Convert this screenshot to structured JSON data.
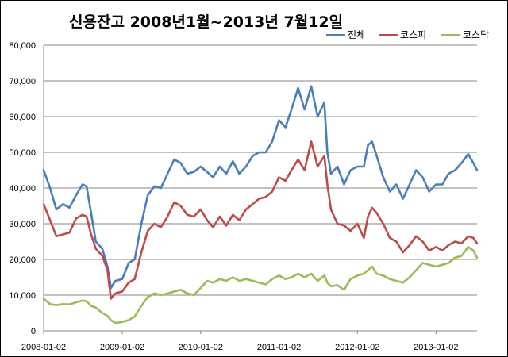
{
  "chart_data": {
    "type": "line",
    "title": "신용잔고  2008년1월~2013년 7월12일",
    "xlabel": "",
    "ylabel": "",
    "ylim": [
      0,
      80000
    ],
    "y_ticks": [
      "0",
      "10,000",
      "20,000",
      "30,000",
      "40,000",
      "50,000",
      "60,000",
      "70,000",
      "80,000"
    ],
    "x_ticks": [
      "2008-01-02",
      "2009-01-02",
      "2010-01-02",
      "2011-01-02",
      "2012-01-02",
      "2013-01-02"
    ],
    "xlim": [
      "2008-01-02",
      "2013-07-12"
    ],
    "grid": "horizontal",
    "legend_position": "top-right",
    "series": [
      {
        "name": "전체",
        "color": "#4A7EBB",
        "points": [
          [
            "2008-01-02",
            45000
          ],
          [
            "2008-02-01",
            40000
          ],
          [
            "2008-03-01",
            34000
          ],
          [
            "2008-04-01",
            35500
          ],
          [
            "2008-05-01",
            34500
          ],
          [
            "2008-06-01",
            38000
          ],
          [
            "2008-07-01",
            41000
          ],
          [
            "2008-07-20",
            40500
          ],
          [
            "2008-08-10",
            33000
          ],
          [
            "2008-09-01",
            25000
          ],
          [
            "2008-10-01",
            23000
          ],
          [
            "2008-10-25",
            18000
          ],
          [
            "2008-11-10",
            12000
          ],
          [
            "2008-12-01",
            14000
          ],
          [
            "2009-01-02",
            14500
          ],
          [
            "2009-02-01",
            19000
          ],
          [
            "2009-03-01",
            20000
          ],
          [
            "2009-04-01",
            30000
          ],
          [
            "2009-05-01",
            38000
          ],
          [
            "2009-06-01",
            40500
          ],
          [
            "2009-07-01",
            40000
          ],
          [
            "2009-08-01",
            44000
          ],
          [
            "2009-09-01",
            48000
          ],
          [
            "2009-10-01",
            47000
          ],
          [
            "2009-11-01",
            44000
          ],
          [
            "2009-12-01",
            44500
          ],
          [
            "2010-01-02",
            46000
          ],
          [
            "2010-02-01",
            44500
          ],
          [
            "2010-03-01",
            43000
          ],
          [
            "2010-04-01",
            46000
          ],
          [
            "2010-05-01",
            44000
          ],
          [
            "2010-06-01",
            47500
          ],
          [
            "2010-07-01",
            44000
          ],
          [
            "2010-08-01",
            46000
          ],
          [
            "2010-09-01",
            49000
          ],
          [
            "2010-10-01",
            50000
          ],
          [
            "2010-11-01",
            50000
          ],
          [
            "2010-12-01",
            53000
          ],
          [
            "2011-01-02",
            59000
          ],
          [
            "2011-02-01",
            57000
          ],
          [
            "2011-03-01",
            62000
          ],
          [
            "2011-04-01",
            68000
          ],
          [
            "2011-05-01",
            62000
          ],
          [
            "2011-06-01",
            68500
          ],
          [
            "2011-07-01",
            60000
          ],
          [
            "2011-08-01",
            64000
          ],
          [
            "2011-08-15",
            50000
          ],
          [
            "2011-09-01",
            44000
          ],
          [
            "2011-10-01",
            46000
          ],
          [
            "2011-11-01",
            41000
          ],
          [
            "2011-12-01",
            45000
          ],
          [
            "2012-01-02",
            46000
          ],
          [
            "2012-02-01",
            46000
          ],
          [
            "2012-02-20",
            52000
          ],
          [
            "2012-03-10",
            53000
          ],
          [
            "2012-04-01",
            49000
          ],
          [
            "2012-05-01",
            43000
          ],
          [
            "2012-06-01",
            39000
          ],
          [
            "2012-07-01",
            41000
          ],
          [
            "2012-08-01",
            37000
          ],
          [
            "2012-09-01",
            41000
          ],
          [
            "2012-10-01",
            45000
          ],
          [
            "2012-11-01",
            43000
          ],
          [
            "2012-12-01",
            39000
          ],
          [
            "2013-01-02",
            41000
          ],
          [
            "2013-02-01",
            41000
          ],
          [
            "2013-03-01",
            44000
          ],
          [
            "2013-04-01",
            45000
          ],
          [
            "2013-05-01",
            47000
          ],
          [
            "2013-06-01",
            49500
          ],
          [
            "2013-06-25",
            47000
          ],
          [
            "2013-07-12",
            45000
          ]
        ]
      },
      {
        "name": "코스피",
        "color": "#BE4B48",
        "points": [
          [
            "2008-01-02",
            35500
          ],
          [
            "2008-02-01",
            31000
          ],
          [
            "2008-03-01",
            26500
          ],
          [
            "2008-04-01",
            27000
          ],
          [
            "2008-05-01",
            27500
          ],
          [
            "2008-06-01",
            31500
          ],
          [
            "2008-07-01",
            32500
          ],
          [
            "2008-07-20",
            32000
          ],
          [
            "2008-08-10",
            27000
          ],
          [
            "2008-09-01",
            23000
          ],
          [
            "2008-10-01",
            21000
          ],
          [
            "2008-10-25",
            17000
          ],
          [
            "2008-11-10",
            9000
          ],
          [
            "2008-12-01",
            10500
          ],
          [
            "2009-01-02",
            11000
          ],
          [
            "2009-02-01",
            13500
          ],
          [
            "2009-03-01",
            14500
          ],
          [
            "2009-04-01",
            22000
          ],
          [
            "2009-05-01",
            28000
          ],
          [
            "2009-06-01",
            30000
          ],
          [
            "2009-07-01",
            29000
          ],
          [
            "2009-08-01",
            32000
          ],
          [
            "2009-09-01",
            36000
          ],
          [
            "2009-10-01",
            35000
          ],
          [
            "2009-11-01",
            32500
          ],
          [
            "2009-12-01",
            32000
          ],
          [
            "2010-01-02",
            34000
          ],
          [
            "2010-02-01",
            31000
          ],
          [
            "2010-03-01",
            29000
          ],
          [
            "2010-04-01",
            32000
          ],
          [
            "2010-05-01",
            29500
          ],
          [
            "2010-06-01",
            32500
          ],
          [
            "2010-07-01",
            31000
          ],
          [
            "2010-08-01",
            34000
          ],
          [
            "2010-09-01",
            35500
          ],
          [
            "2010-10-01",
            37000
          ],
          [
            "2010-11-01",
            37500
          ],
          [
            "2010-12-01",
            39000
          ],
          [
            "2011-01-02",
            43000
          ],
          [
            "2011-02-01",
            42000
          ],
          [
            "2011-03-01",
            45000
          ],
          [
            "2011-04-01",
            48000
          ],
          [
            "2011-05-01",
            45000
          ],
          [
            "2011-06-01",
            53000
          ],
          [
            "2011-07-01",
            46000
          ],
          [
            "2011-08-01",
            49000
          ],
          [
            "2011-08-15",
            41000
          ],
          [
            "2011-09-01",
            34000
          ],
          [
            "2011-10-01",
            30000
          ],
          [
            "2011-11-01",
            29500
          ],
          [
            "2011-12-01",
            28000
          ],
          [
            "2012-01-02",
            30000
          ],
          [
            "2012-02-01",
            26000
          ],
          [
            "2012-02-20",
            32000
          ],
          [
            "2012-03-10",
            34500
          ],
          [
            "2012-04-01",
            33000
          ],
          [
            "2012-05-01",
            30000
          ],
          [
            "2012-06-01",
            26000
          ],
          [
            "2012-07-01",
            25000
          ],
          [
            "2012-08-01",
            22000
          ],
          [
            "2012-09-01",
            24000
          ],
          [
            "2012-10-01",
            26500
          ],
          [
            "2012-11-01",
            25000
          ],
          [
            "2012-12-01",
            22500
          ],
          [
            "2013-01-02",
            23500
          ],
          [
            "2013-02-01",
            22500
          ],
          [
            "2013-03-01",
            24000
          ],
          [
            "2013-04-01",
            25000
          ],
          [
            "2013-05-01",
            24500
          ],
          [
            "2013-06-01",
            26500
          ],
          [
            "2013-06-25",
            26000
          ],
          [
            "2013-07-12",
            24500
          ]
        ]
      },
      {
        "name": "코스닥",
        "color": "#9BBB59",
        "points": [
          [
            "2008-01-02",
            9000
          ],
          [
            "2008-02-01",
            7500
          ],
          [
            "2008-03-01",
            7200
          ],
          [
            "2008-04-01",
            7500
          ],
          [
            "2008-05-01",
            7400
          ],
          [
            "2008-06-01",
            8000
          ],
          [
            "2008-07-01",
            8500
          ],
          [
            "2008-07-20",
            8300
          ],
          [
            "2008-08-10",
            7000
          ],
          [
            "2008-09-01",
            6500
          ],
          [
            "2008-10-01",
            5000
          ],
          [
            "2008-10-25",
            4200
          ],
          [
            "2008-11-10",
            3000
          ],
          [
            "2008-12-01",
            2200
          ],
          [
            "2009-01-02",
            2500
          ],
          [
            "2009-02-01",
            3000
          ],
          [
            "2009-03-01",
            4000
          ],
          [
            "2009-04-01",
            7000
          ],
          [
            "2009-05-01",
            9500
          ],
          [
            "2009-06-01",
            10500
          ],
          [
            "2009-07-01",
            10000
          ],
          [
            "2009-08-01",
            10500
          ],
          [
            "2009-09-01",
            11000
          ],
          [
            "2009-10-01",
            11500
          ],
          [
            "2009-11-01",
            10500
          ],
          [
            "2009-12-01",
            10000
          ],
          [
            "2010-01-02",
            12000
          ],
          [
            "2010-02-01",
            14000
          ],
          [
            "2010-03-01",
            13500
          ],
          [
            "2010-04-01",
            14500
          ],
          [
            "2010-05-01",
            14000
          ],
          [
            "2010-06-01",
            15000
          ],
          [
            "2010-07-01",
            14000
          ],
          [
            "2010-08-01",
            14500
          ],
          [
            "2010-09-01",
            14000
          ],
          [
            "2010-10-01",
            13500
          ],
          [
            "2010-11-01",
            13000
          ],
          [
            "2010-12-01",
            14500
          ],
          [
            "2011-01-02",
            15500
          ],
          [
            "2011-02-01",
            14500
          ],
          [
            "2011-03-01",
            15000
          ],
          [
            "2011-04-01",
            16000
          ],
          [
            "2011-05-01",
            15000
          ],
          [
            "2011-06-01",
            16000
          ],
          [
            "2011-07-01",
            14000
          ],
          [
            "2011-08-01",
            15500
          ],
          [
            "2011-08-15",
            13500
          ],
          [
            "2011-09-01",
            12500
          ],
          [
            "2011-10-01",
            12800
          ],
          [
            "2011-11-01",
            11500
          ],
          [
            "2011-12-01",
            14500
          ],
          [
            "2012-01-02",
            15500
          ],
          [
            "2012-02-01",
            16000
          ],
          [
            "2012-02-20",
            17000
          ],
          [
            "2012-03-10",
            18000
          ],
          [
            "2012-04-01",
            16000
          ],
          [
            "2012-05-01",
            15500
          ],
          [
            "2012-06-01",
            14500
          ],
          [
            "2012-07-01",
            14000
          ],
          [
            "2012-08-01",
            13500
          ],
          [
            "2012-09-01",
            15000
          ],
          [
            "2012-10-01",
            17000
          ],
          [
            "2012-11-01",
            19000
          ],
          [
            "2012-12-01",
            18500
          ],
          [
            "2013-01-02",
            18000
          ],
          [
            "2013-02-01",
            18500
          ],
          [
            "2013-03-01",
            19000
          ],
          [
            "2013-04-01",
            20500
          ],
          [
            "2013-05-01",
            21000
          ],
          [
            "2013-06-01",
            23500
          ],
          [
            "2013-06-25",
            22500
          ],
          [
            "2013-07-12",
            20500
          ]
        ]
      }
    ]
  }
}
